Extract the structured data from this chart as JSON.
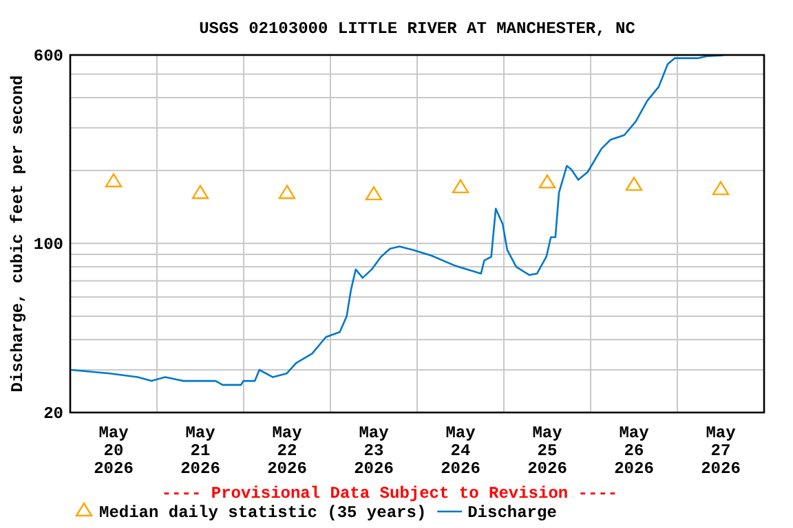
{
  "chart_data": {
    "type": "line",
    "title": "USGS 02103000 LITTLE RIVER AT MANCHESTER, NC",
    "ylabel": "Discharge, cubic feet per second",
    "annotations": [
      "---- Provisional Data Subject to Revision ----"
    ],
    "log": "y",
    "grid": true,
    "legend": "bottom",
    "xlim": [
      "2026-05-20T00:00",
      "2026-05-28T00:00"
    ],
    "xticks": [
      {
        "value": "2026-05-20T00:00",
        "label": null
      },
      {
        "value": "2026-05-20T12:00",
        "label": "May\n20\n2026"
      },
      {
        "value": "2026-05-21T00:00",
        "label": null
      },
      {
        "value": "2026-05-21T12:00",
        "label": "May\n21\n2026"
      },
      {
        "value": "2026-05-22T00:00",
        "label": null
      },
      {
        "value": "2026-05-22T12:00",
        "label": "May\n22\n2026"
      },
      {
        "value": "2026-05-23T00:00",
        "label": null
      },
      {
        "value": "2026-05-23T12:00",
        "label": "May\n23\n2026"
      },
      {
        "value": "2026-05-24T00:00",
        "label": null
      },
      {
        "value": "2026-05-24T12:00",
        "label": "May\n24\n2026"
      },
      {
        "value": "2026-05-25T00:00",
        "label": null
      },
      {
        "value": "2026-05-25T12:00",
        "label": "May\n25\n2026"
      },
      {
        "value": "2026-05-26T00:00",
        "label": null
      },
      {
        "value": "2026-05-26T12:00",
        "label": "May\n26\n2026"
      },
      {
        "value": "2026-05-27T00:00",
        "label": null
      },
      {
        "value": "2026-05-27T12:00",
        "label": "May\n27\n2026"
      },
      {
        "value": "2026-05-28T00:00",
        "label": null
      }
    ],
    "ylim": [
      20,
      600
    ],
    "yticks": [
      20,
      {
        "value": 30,
        "label": null
      },
      {
        "value": 40,
        "label": null
      },
      {
        "value": 50,
        "label": null
      },
      {
        "value": 60,
        "label": null
      },
      {
        "value": 70,
        "label": null
      },
      {
        "value": 80,
        "label": null
      },
      {
        "value": 90,
        "label": null
      },
      100,
      {
        "value": 200,
        "label": null
      },
      {
        "value": 300,
        "label": null
      },
      {
        "value": 400,
        "label": null
      },
      {
        "value": 500,
        "label": null
      },
      600
    ],
    "series": [
      {
        "name": "Median daily statistic (35 years)",
        "type": "scatter",
        "marker": "triangle",
        "color": "#ffa500",
        "x": [
          "2026-05-20T12:00",
          "2026-05-21T12:00",
          "2026-05-22T12:00",
          "2026-05-23T12:00",
          "2026-05-24T12:00",
          "2026-05-25T12:00",
          "2026-05-26T12:00",
          "2026-05-27T12:00"
        ],
        "values": [
          181,
          162,
          162,
          160,
          171,
          179,
          175,
          168
        ]
      },
      {
        "name": "Discharge",
        "marker": "none",
        "color": "#0077cc",
        "x": [
          "2026-05-20T00:15",
          "2026-05-20T11:00",
          "2026-05-20T18:40",
          "2026-05-20T22:30",
          "2026-05-21T02:15",
          "2026-05-21T07:20",
          "2026-05-21T11:10",
          "2026-05-21T16:15",
          "2026-05-21T18:10",
          "2026-05-21T23:15",
          "2026-05-21T23:55",
          "2026-05-22T03:05",
          "2026-05-22T04:20",
          "2026-05-22T08:05",
          "2026-05-22T11:55",
          "2026-05-22T14:30",
          "2026-05-22T18:55",
          "2026-05-22T22:45",
          "2026-05-23T02:35",
          "2026-05-23T04:30",
          "2026-05-23T05:40",
          "2026-05-23T07:00",
          "2026-05-23T08:55",
          "2026-05-23T11:25",
          "2026-05-23T14:00",
          "2026-05-23T16:30",
          "2026-05-23T19:05",
          "2026-05-23T22:50",
          "2026-05-24T03:55",
          "2026-05-24T10:20",
          "2026-05-24T17:40",
          "2026-05-24T18:35",
          "2026-05-24T20:30",
          "2026-05-24T21:45",
          "2026-05-24T23:40",
          "2026-05-25T00:55",
          "2026-05-25T03:25",
          "2026-05-25T07:00",
          "2026-05-25T09:10",
          "2026-05-25T11:45",
          "2026-05-25T13:00",
          "2026-05-25T14:15",
          "2026-05-25T15:15",
          "2026-05-25T17:25",
          "2026-05-25T18:40",
          "2026-05-25T20:35",
          "2026-05-25T23:10",
          "2026-05-26T03:00",
          "2026-05-26T05:30",
          "2026-05-26T09:20",
          "2026-05-26T12:30",
          "2026-05-26T15:40",
          "2026-05-26T18:50",
          "2026-05-26T21:20",
          "2026-05-26T23:15",
          "2026-05-27T05:40",
          "2026-05-27T08:10",
          "2026-05-27T12:40"
        ],
        "values": [
          30,
          29,
          28,
          27,
          28,
          27,
          27,
          27,
          26,
          26,
          27,
          27,
          30,
          28,
          29,
          32,
          35,
          41,
          43,
          50,
          64,
          78,
          72,
          78,
          88,
          95,
          97,
          94,
          89,
          81,
          75,
          85,
          88,
          139,
          120,
          94,
          80,
          74,
          75,
          88,
          106,
          106,
          162,
          209,
          202,
          183,
          197,
          246,
          268,
          280,
          319,
          388,
          443,
          550,
          582,
          582,
          593,
          598
        ]
      }
    ]
  }
}
